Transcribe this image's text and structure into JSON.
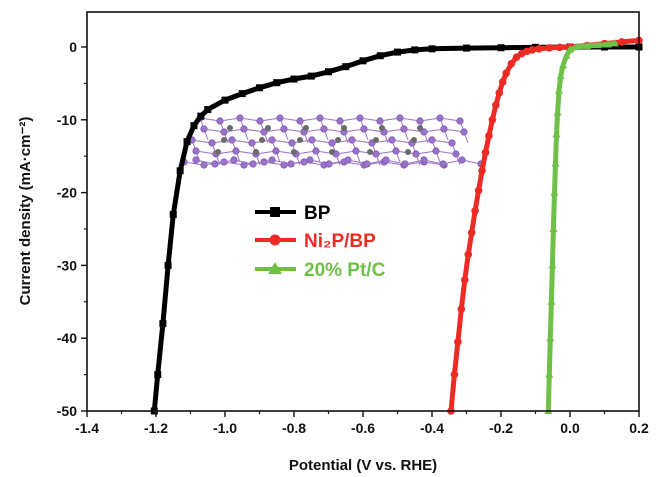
{
  "chart_data": {
    "type": "line",
    "xlabel": "Potential (V vs. RHE)",
    "ylabel": "Current density (mA·cm⁻²)",
    "xlim": [
      -1.4,
      0.2
    ],
    "ylim": [
      -50,
      5
    ],
    "xticks": [
      -1.4,
      -1.2,
      -1.0,
      -0.8,
      -0.6,
      -0.4,
      -0.2,
      0.0,
      0.2
    ],
    "xtick_labels": [
      "-1.4",
      "-1.2",
      "-1.0",
      "-0.8",
      "-0.6",
      "-0.4",
      "-0.2",
      "0.0",
      "0.2"
    ],
    "yticks": [
      0,
      -10,
      -20,
      -30,
      -40,
      -50
    ],
    "ytick_labels": [
      "0",
      "-10",
      "-20",
      "-30",
      "-40",
      "-50"
    ],
    "grid": false,
    "legend_position": "center-left",
    "series": [
      {
        "name": "BP",
        "color": "#000000",
        "marker": "square",
        "x": [
          -1.205,
          -1.195,
          -1.18,
          -1.165,
          -1.15,
          -1.13,
          -1.11,
          -1.09,
          -1.07,
          -1.05,
          -1.0,
          -0.95,
          -0.9,
          -0.85,
          -0.8,
          -0.75,
          -0.7,
          -0.65,
          -0.6,
          -0.55,
          -0.5,
          -0.45,
          -0.4,
          -0.3,
          -0.2,
          -0.1,
          0.0,
          0.1,
          0.2
        ],
        "y": [
          -50,
          -45,
          -38,
          -30,
          -23,
          -17,
          -13,
          -10.8,
          -9.5,
          -8.6,
          -7.3,
          -6.4,
          -5.6,
          -4.9,
          -4.4,
          -4.0,
          -3.4,
          -2.7,
          -1.9,
          -1.2,
          -0.7,
          -0.4,
          -0.25,
          -0.15,
          -0.1,
          -0.05,
          0.0,
          0.0,
          0.0
        ]
      },
      {
        "name": "Ni₂P/BP",
        "color": "#ee2a24",
        "marker": "circle",
        "x": [
          -0.345,
          -0.335,
          -0.325,
          -0.315,
          -0.305,
          -0.295,
          -0.285,
          -0.275,
          -0.265,
          -0.255,
          -0.245,
          -0.235,
          -0.225,
          -0.215,
          -0.205,
          -0.195,
          -0.185,
          -0.17,
          -0.155,
          -0.14,
          -0.125,
          -0.11,
          -0.09,
          -0.06,
          -0.03,
          0.0,
          0.05,
          0.1,
          0.15,
          0.2
        ],
        "y": [
          -50,
          -45,
          -40.5,
          -36,
          -32,
          -28.5,
          -25.5,
          -22.5,
          -19.7,
          -17,
          -14.5,
          -12.2,
          -10,
          -8,
          -6.3,
          -4.8,
          -3.6,
          -2.3,
          -1.4,
          -0.9,
          -0.6,
          -0.4,
          -0.25,
          -0.12,
          -0.05,
          0.0,
          0.2,
          0.45,
          0.7,
          0.9
        ]
      },
      {
        "name": "20% Pt/C",
        "color": "#6ec046",
        "marker": "triangle",
        "x": [
          -0.063,
          -0.06,
          -0.057,
          -0.054,
          -0.051,
          -0.048,
          -0.045,
          -0.042,
          -0.039,
          -0.036,
          -0.032,
          -0.027,
          -0.02,
          -0.01,
          0.0,
          0.02,
          0.05,
          0.08,
          0.11,
          0.13
        ],
        "y": [
          -50,
          -45,
          -40,
          -35,
          -30,
          -25,
          -20,
          -16,
          -12,
          -9,
          -6,
          -4,
          -2.5,
          -1.2,
          -0.4,
          0.0,
          0.15,
          0.25,
          0.35,
          0.5
        ]
      }
    ]
  }
}
